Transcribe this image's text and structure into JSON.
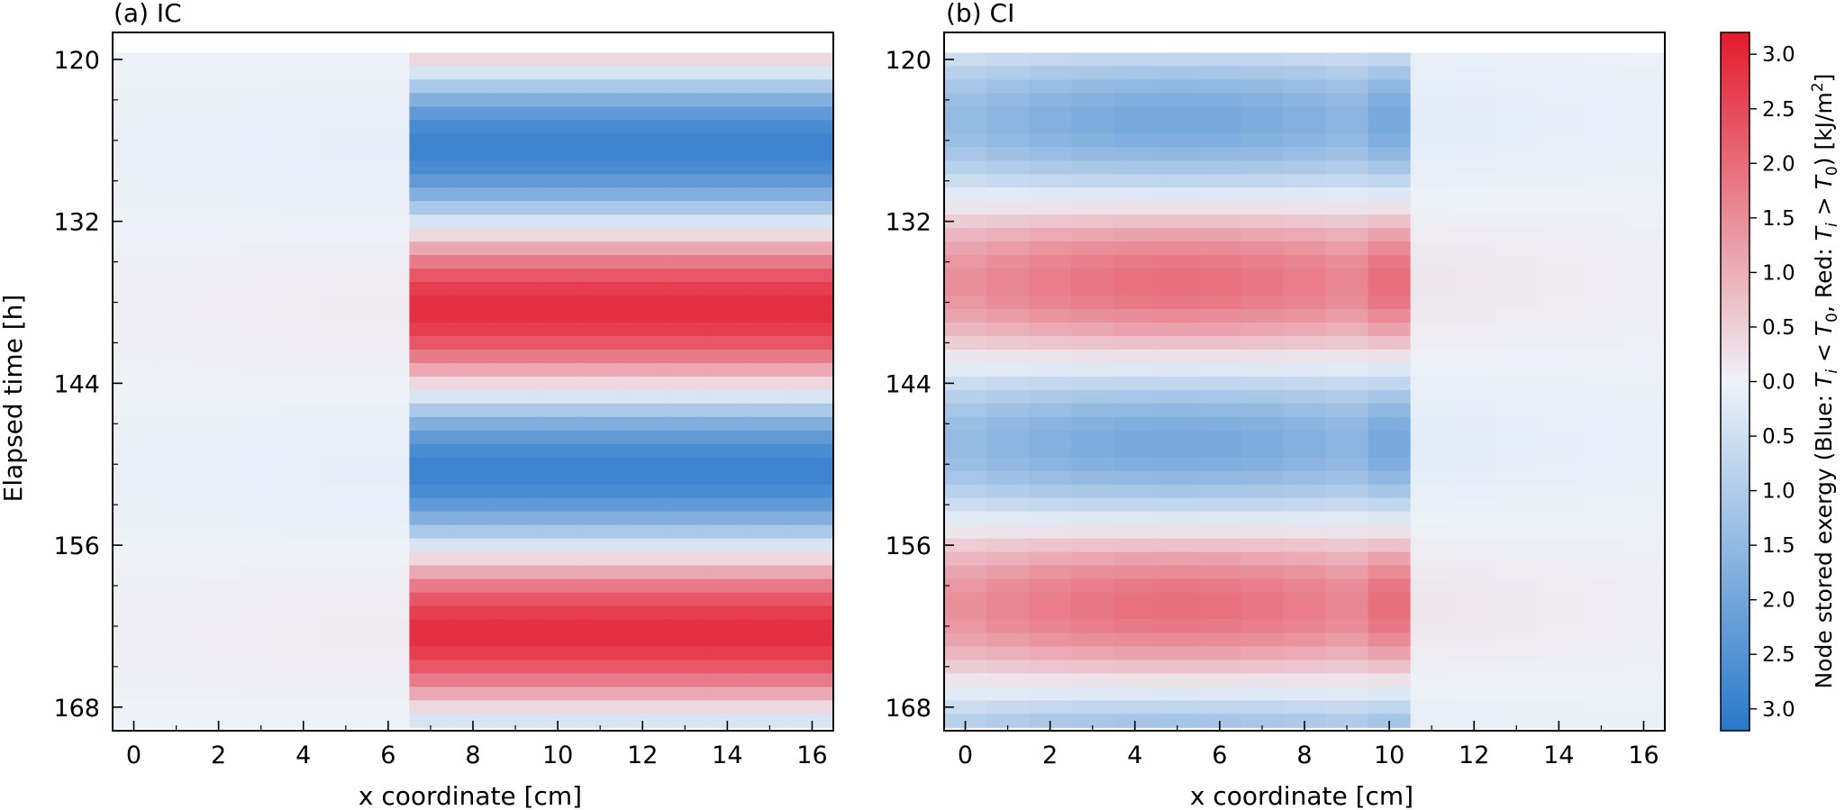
{
  "chart_data": {
    "type": "heatmap",
    "panels": [
      {
        "title": "(a) IC",
        "xlabel": "x coordinate [cm]",
        "ylabel": "Elapsed time [h]",
        "xticks": [
          "0",
          "2",
          "4",
          "6",
          "8",
          "10",
          "12",
          "14",
          "16"
        ],
        "yticks": [
          "120",
          "132",
          "144",
          "156",
          "168"
        ],
        "xlim": [
          -0.5,
          16.5
        ],
        "ylim": [
          169.75,
          118.0
        ],
        "grid": false,
        "columns": [
          {
            "x_from": 0,
            "x_to": 6,
            "amplitude": 0.12
          },
          {
            "x_from": 6,
            "x_to": 16,
            "amplitude": 2.9
          }
        ],
        "hours": [
          120,
          169
        ],
        "period_h": 24,
        "phase_h": 6.5
      },
      {
        "title": "(b) CI",
        "xlabel": "x coordinate [cm]",
        "ylabel": "",
        "xticks": [
          "0",
          "2",
          "4",
          "6",
          "8",
          "10",
          "12",
          "14",
          "16"
        ],
        "yticks": [
          "120",
          "132",
          "144",
          "156",
          "168"
        ],
        "xlim": [
          -0.5,
          16.5
        ],
        "ylim": [
          169.75,
          118.0
        ],
        "grid": false,
        "columns": [
          {
            "x_from": 0,
            "x_to": 10,
            "amplitude": 1.95
          },
          {
            "x_from": 10,
            "x_to": 16,
            "amplitude": 0.2
          }
        ],
        "hours": [
          120,
          169
        ],
        "period_h": 24,
        "phase_h": 4.5
      }
    ],
    "colorbar": {
      "label": "Node stored exergy (Blue: T_i < T_0, Red: T_i > T_0) [kJ/m^2]",
      "red_ticks": [
        "3.0",
        "2.5",
        "2.0",
        "1.5",
        "1.0",
        "0.5"
      ],
      "zero_tick": "0.0",
      "blue_ticks": [
        "0.5",
        "1.0",
        "1.5",
        "2.0",
        "2.5",
        "3.0"
      ],
      "max": 3.2,
      "colors": {
        "red": "#e41a2e",
        "blue": "#2a78c9",
        "neutral": "#eef2f8"
      }
    }
  }
}
